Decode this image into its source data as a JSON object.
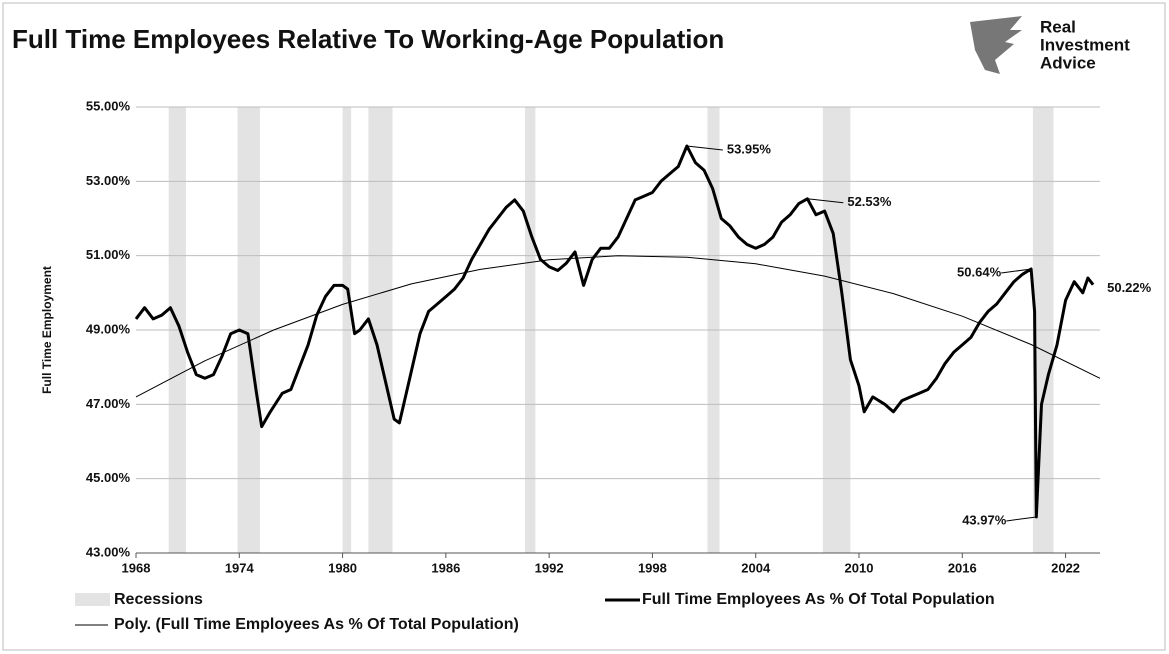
{
  "chart_data": {
    "type": "line",
    "title": "Full Time Employees Relative To Working-Age Population",
    "logo": [
      "Real",
      "Investment",
      "Advice"
    ],
    "ylabel": "Full Time Employment",
    "xlim": [
      1968,
      2024
    ],
    "xticks": [
      1968,
      1974,
      1980,
      1986,
      1992,
      1998,
      2004,
      2010,
      2016,
      2022
    ],
    "ylim": [
      43,
      55
    ],
    "yticks": [
      {
        "value": 43,
        "label": "43.00%"
      },
      {
        "value": 45,
        "label": "45.00%"
      },
      {
        "value": 47,
        "label": "47.00%"
      },
      {
        "value": 49,
        "label": "49.00%"
      },
      {
        "value": 51,
        "label": "51.00%"
      },
      {
        "value": 53,
        "label": "53.00%"
      },
      {
        "value": 55,
        "label": "55.00%"
      }
    ],
    "grid": true,
    "recessions": {
      "name": "Recessions",
      "color": "#e3e3e3",
      "periods": [
        [
          1969.9,
          1970.9
        ],
        [
          1973.9,
          1975.2
        ],
        [
          1980.0,
          1980.5
        ],
        [
          1981.5,
          1982.9
        ],
        [
          1990.6,
          1991.2
        ],
        [
          2001.2,
          2001.9
        ],
        [
          2007.9,
          2009.5
        ],
        [
          2020.1,
          2021.3
        ]
      ]
    },
    "series": [
      {
        "name": "Full Time Employees As % Of Total Population",
        "color": "#000000",
        "x": [
          1968.0,
          1968.5,
          1969.0,
          1969.5,
          1970.0,
          1970.5,
          1971.0,
          1971.5,
          1972.0,
          1972.5,
          1973.0,
          1973.5,
          1974.0,
          1974.5,
          1975.0,
          1975.3,
          1975.8,
          1976.5,
          1977.0,
          1977.5,
          1978.0,
          1978.5,
          1979.0,
          1979.5,
          1980.0,
          1980.3,
          1980.7,
          1981.0,
          1981.5,
          1982.0,
          1982.5,
          1983.0,
          1983.3,
          1983.8,
          1984.5,
          1985.0,
          1985.5,
          1986.0,
          1986.5,
          1987.0,
          1987.5,
          1988.0,
          1988.5,
          1989.0,
          1989.5,
          1990.0,
          1990.5,
          1991.0,
          1991.5,
          1992.0,
          1992.5,
          1993.0,
          1993.5,
          1994.0,
          1994.5,
          1995.0,
          1995.5,
          1996.0,
          1996.5,
          1997.0,
          1997.5,
          1998.0,
          1998.5,
          1999.0,
          1999.5,
          2000.0,
          2000.5,
          2001.0,
          2001.5,
          2002.0,
          2002.5,
          2003.0,
          2003.5,
          2004.0,
          2004.5,
          2005.0,
          2005.5,
          2006.0,
          2006.5,
          2007.0,
          2007.5,
          2008.0,
          2008.5,
          2009.0,
          2009.5,
          2010.0,
          2010.3,
          2010.8,
          2011.5,
          2012.0,
          2012.5,
          2013.0,
          2013.5,
          2014.0,
          2014.5,
          2015.0,
          2015.5,
          2016.0,
          2016.5,
          2017.0,
          2017.5,
          2018.0,
          2018.5,
          2019.0,
          2019.5,
          2020.0,
          2020.2,
          2020.3,
          2020.6,
          2021.0,
          2021.5,
          2022.0,
          2022.5,
          2023.0,
          2023.3,
          2023.6
        ],
        "values": [
          49.3,
          49.6,
          49.3,
          49.4,
          49.6,
          49.1,
          48.4,
          47.8,
          47.7,
          47.8,
          48.3,
          48.9,
          49.0,
          48.9,
          47.3,
          46.4,
          46.8,
          47.3,
          47.4,
          48.0,
          48.6,
          49.4,
          49.9,
          50.2,
          50.2,
          50.1,
          48.9,
          49.0,
          49.3,
          48.6,
          47.6,
          46.6,
          46.5,
          47.5,
          48.9,
          49.5,
          49.7,
          49.9,
          50.1,
          50.4,
          50.9,
          51.3,
          51.7,
          52.0,
          52.3,
          52.5,
          52.2,
          51.5,
          50.9,
          50.7,
          50.6,
          50.8,
          51.1,
          50.2,
          50.9,
          51.2,
          51.2,
          51.5,
          52.0,
          52.5,
          52.6,
          52.7,
          53.0,
          53.2,
          53.4,
          53.95,
          53.5,
          53.3,
          52.8,
          52.0,
          51.8,
          51.5,
          51.3,
          51.2,
          51.3,
          51.5,
          51.9,
          52.1,
          52.4,
          52.53,
          52.1,
          52.2,
          51.6,
          50.0,
          48.2,
          47.5,
          46.8,
          47.2,
          47.0,
          46.8,
          47.1,
          47.2,
          47.3,
          47.4,
          47.7,
          48.1,
          48.4,
          48.6,
          48.8,
          49.2,
          49.5,
          49.7,
          50.0,
          50.3,
          50.5,
          50.64,
          49.5,
          43.97,
          47.0,
          47.8,
          48.6,
          49.8,
          50.3,
          50.0,
          50.4,
          50.22
        ],
        "value_labels": [
          null,
          null,
          null,
          null,
          null,
          null,
          null,
          null,
          null,
          null,
          null,
          null,
          null,
          null,
          null,
          null,
          null,
          null,
          null,
          null,
          null,
          null,
          null,
          null,
          null,
          null,
          null,
          null,
          null,
          null,
          null,
          null,
          null,
          null,
          null,
          null,
          null,
          null,
          null,
          null,
          null,
          null,
          null,
          null,
          null,
          null,
          null,
          null,
          null,
          null,
          null,
          null,
          null,
          null,
          null,
          null,
          null,
          null,
          null,
          null,
          null,
          null,
          null,
          null,
          null,
          "53.95%",
          null,
          null,
          null,
          null,
          null,
          null,
          null,
          null,
          null,
          null,
          null,
          null,
          null,
          "52.53%",
          null,
          null,
          null,
          null,
          null,
          null,
          null,
          null,
          null,
          null,
          null,
          null,
          null,
          null,
          null,
          null,
          null,
          null,
          null,
          null,
          null,
          null,
          null,
          null,
          null,
          "50.64%",
          null,
          "43.97%",
          null,
          null,
          null,
          null,
          null,
          null,
          null,
          "50.22%"
        ]
      },
      {
        "name": "Poly. (Full Time Employees As % Of Total Population)",
        "color": "#000000",
        "x": [
          1968,
          1972,
          1976,
          1980,
          1984,
          1988,
          1992,
          1996,
          2000,
          2004,
          2008,
          2012,
          2016,
          2020,
          2024
        ],
        "values": [
          47.2,
          48.17,
          49.0,
          49.69,
          50.24,
          50.63,
          50.89,
          51.0,
          50.96,
          50.78,
          50.45,
          49.98,
          49.37,
          48.61,
          47.7
        ]
      }
    ]
  }
}
